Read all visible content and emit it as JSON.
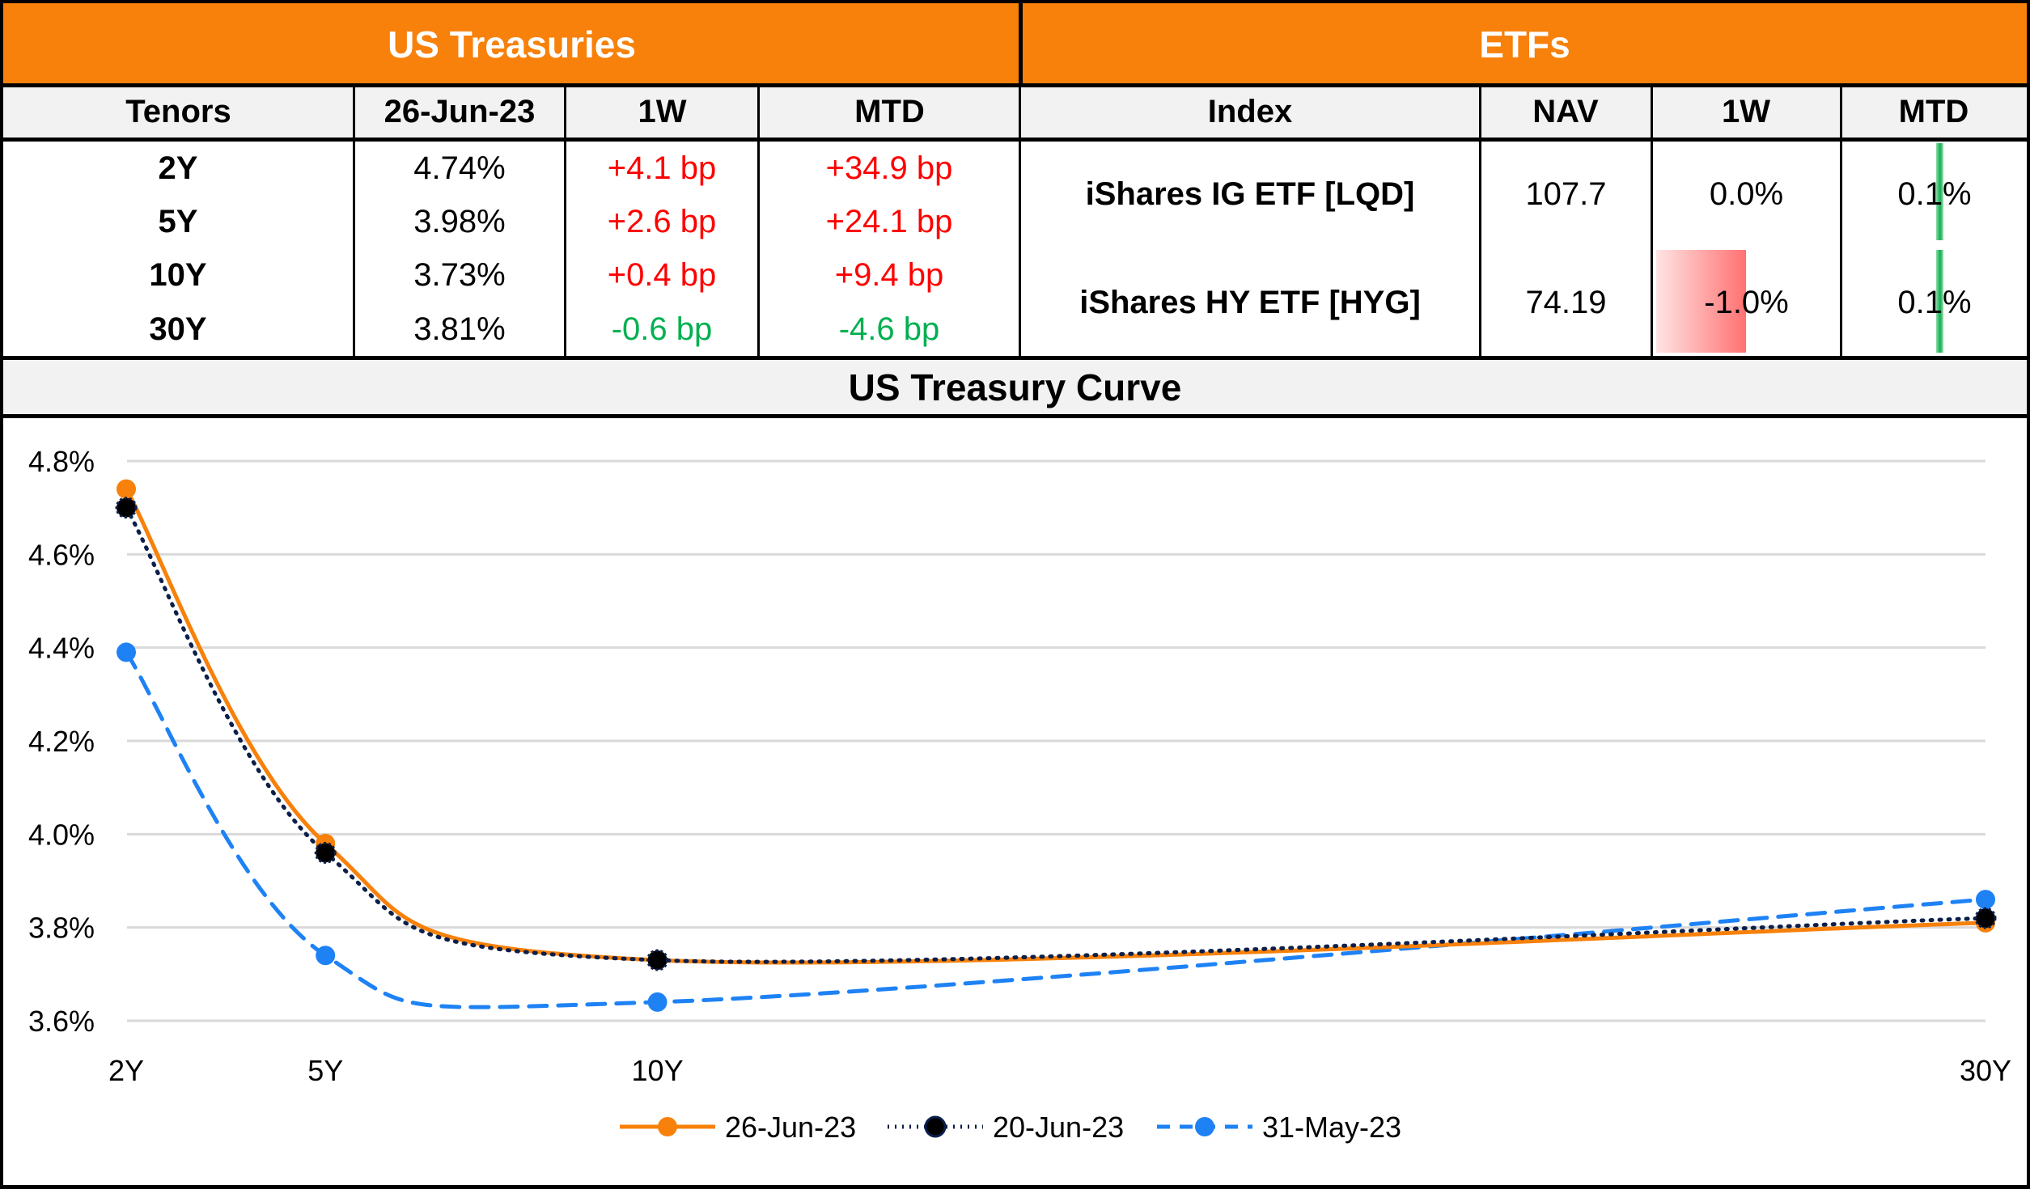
{
  "treasuries": {
    "title": "US Treasuries",
    "headers": [
      "Tenors",
      "26-Jun-23",
      "1W",
      "MTD"
    ],
    "rows": [
      {
        "tenor": "2Y",
        "yield": "4.74%",
        "w1": "+4.1 bp",
        "mtd": "+34.9 bp",
        "w1_dir": "up",
        "mtd_dir": "up"
      },
      {
        "tenor": "5Y",
        "yield": "3.98%",
        "w1": "+2.6 bp",
        "mtd": "+24.1 bp",
        "w1_dir": "up",
        "mtd_dir": "up"
      },
      {
        "tenor": "10Y",
        "yield": "3.73%",
        "w1": "+0.4 bp",
        "mtd": "+9.4 bp",
        "w1_dir": "up",
        "mtd_dir": "up"
      },
      {
        "tenor": "30Y",
        "yield": "3.81%",
        "w1": "-0.6 bp",
        "mtd": "-4.6 bp",
        "w1_dir": "down",
        "mtd_dir": "down"
      }
    ]
  },
  "etfs": {
    "title": "ETFs",
    "headers": [
      "Index",
      "NAV",
      "1W",
      "MTD"
    ],
    "rows": [
      {
        "name": "iShares IG ETF [LQD]",
        "nav": "107.7",
        "w1": "0.0%",
        "mtd": "0.1%",
        "w1_value": 0.0,
        "mtd_value": 0.1
      },
      {
        "name": "iShares HY ETF [HYG]",
        "nav": "74.19",
        "w1": "-1.0%",
        "mtd": "0.1%",
        "w1_value": -1.0,
        "mtd_value": 0.1
      }
    ]
  },
  "colors": {
    "header_orange": "#F7810A",
    "positive_change": "#FF0000",
    "negative_change": "#00B050",
    "series_26jun": "#F7810A",
    "series_20jun": "#0B1F4A",
    "series_31may": "#1E82F5"
  },
  "chart_data": {
    "type": "line",
    "title": "US Treasury Curve",
    "xlabel": "",
    "ylabel": "",
    "categories": [
      "2Y",
      "5Y",
      "10Y",
      "30Y"
    ],
    "x": [
      2,
      5,
      10,
      30
    ],
    "y_ticks": [
      "3.6%",
      "3.8%",
      "4.0%",
      "4.2%",
      "4.4%",
      "4.6%",
      "4.8%"
    ],
    "y_tick_values": [
      3.6,
      3.8,
      4.0,
      4.2,
      4.4,
      4.6,
      4.8
    ],
    "ylim": [
      3.6,
      4.8
    ],
    "xlim": [
      2,
      30
    ],
    "grid": true,
    "legend_position": "bottom-center",
    "series": [
      {
        "name": "26-Jun-23",
        "values": [
          4.74,
          3.98,
          3.73,
          3.81
        ],
        "style": "solid",
        "color": "#F7810A"
      },
      {
        "name": "20-Jun-23",
        "values": [
          4.7,
          3.96,
          3.73,
          3.82
        ],
        "style": "dotted",
        "color": "#0B1F4A"
      },
      {
        "name": "31-May-23",
        "values": [
          4.39,
          3.74,
          3.64,
          3.86
        ],
        "style": "dashed",
        "color": "#1E82F5"
      }
    ]
  }
}
